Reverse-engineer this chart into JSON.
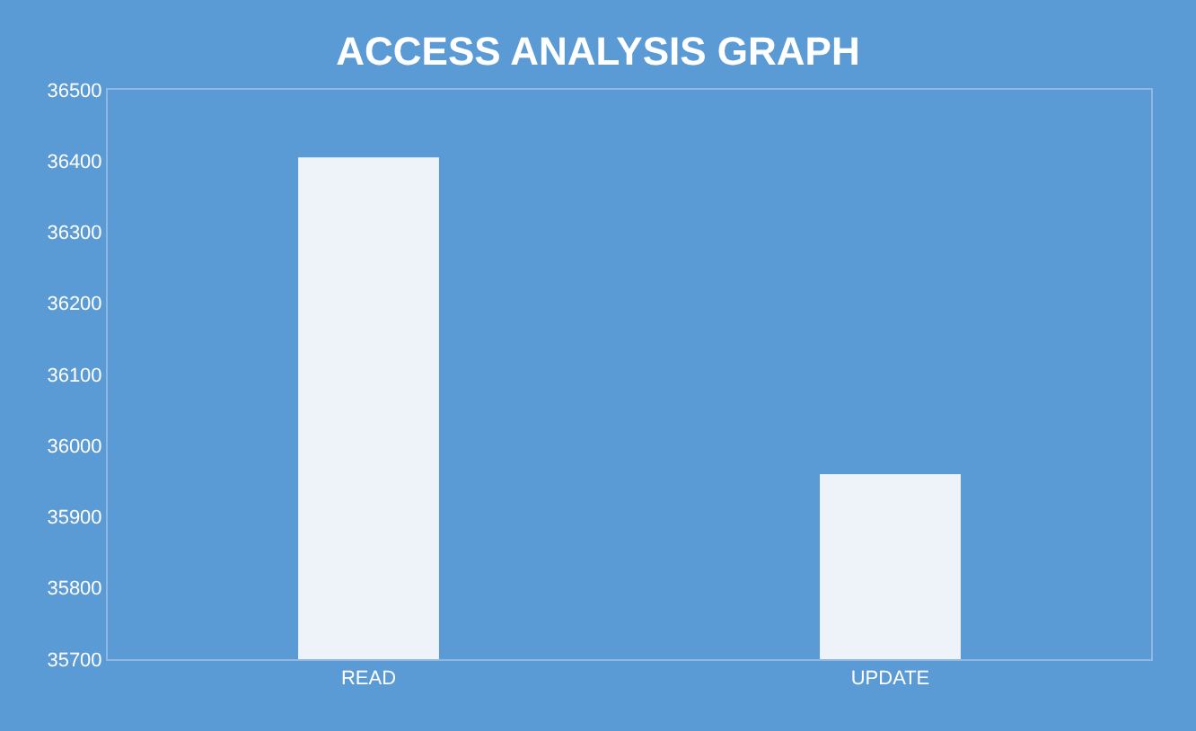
{
  "chart_data": {
    "type": "bar",
    "title": "ACCESS ANALYSIS GRAPH",
    "categories": [
      "READ",
      "UPDATE"
    ],
    "series": [
      {
        "color": "#eef3fa",
        "values": [
          36405,
          35960
        ]
      }
    ],
    "ylim": [
      35700,
      36500
    ],
    "yticks": [
      35700,
      35800,
      35900,
      36000,
      36100,
      36200,
      36300,
      36400,
      36500
    ],
    "grid": false,
    "legend": false
  }
}
